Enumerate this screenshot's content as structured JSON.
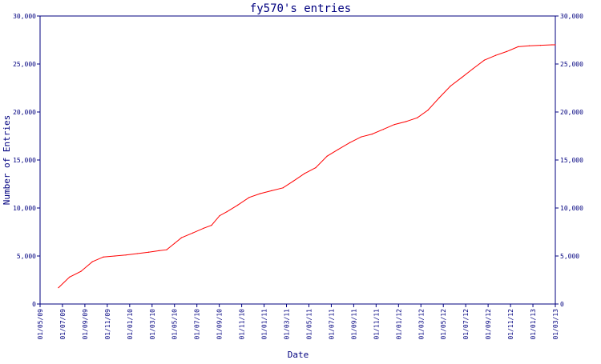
{
  "chart_data": {
    "type": "line",
    "title": "fy570's entries",
    "xlabel": "Date",
    "ylabel": "Number of Entries",
    "ylim": [
      0,
      30000
    ],
    "y_ticks": [
      {
        "value": 0,
        "label": "0"
      },
      {
        "value": 5000,
        "label": "5,000"
      },
      {
        "value": 10000,
        "label": "10,000"
      },
      {
        "value": 15000,
        "label": "15,000"
      },
      {
        "value": 20000,
        "label": "20,000"
      },
      {
        "value": 25000,
        "label": "25,000"
      },
      {
        "value": 30000,
        "label": "30,000"
      }
    ],
    "x_ticks": [
      "01/05/09",
      "01/07/09",
      "01/09/09",
      "01/11/09",
      "01/01/10",
      "01/03/10",
      "01/05/10",
      "01/07/10",
      "01/09/10",
      "01/11/10",
      "01/01/11",
      "01/03/11",
      "01/05/11",
      "01/07/11",
      "01/09/11",
      "01/11/11",
      "01/01/12",
      "01/03/12",
      "01/05/12",
      "01/07/12",
      "01/09/12",
      "01/11/12",
      "01/01/13",
      "01/03/13"
    ],
    "xlim": [
      "2009-05-01",
      "2013-03-01"
    ],
    "grid": false,
    "line_color": "#ff0000",
    "axis_color": "#00007f",
    "series": [
      {
        "points": [
          [
            "2009-06-20",
            1700
          ],
          [
            "2009-07-20",
            2800
          ],
          [
            "2009-08-20",
            3400
          ],
          [
            "2009-09-20",
            4400
          ],
          [
            "2009-10-20",
            4900
          ],
          [
            "2009-11-20",
            5000
          ],
          [
            "2009-12-20",
            5100
          ],
          [
            "2010-01-20",
            5250
          ],
          [
            "2010-02-20",
            5400
          ],
          [
            "2010-03-20",
            5550
          ],
          [
            "2010-04-10",
            5650
          ],
          [
            "2010-05-01",
            6300
          ],
          [
            "2010-05-20",
            6900
          ],
          [
            "2010-06-20",
            7400
          ],
          [
            "2010-07-20",
            7900
          ],
          [
            "2010-08-10",
            8200
          ],
          [
            "2010-09-01",
            9200
          ],
          [
            "2010-09-20",
            9600
          ],
          [
            "2010-10-20",
            10300
          ],
          [
            "2010-11-20",
            11100
          ],
          [
            "2010-12-20",
            11500
          ],
          [
            "2011-01-20",
            11800
          ],
          [
            "2011-02-20",
            12100
          ],
          [
            "2011-03-20",
            12800
          ],
          [
            "2011-04-20",
            13600
          ],
          [
            "2011-05-20",
            14200
          ],
          [
            "2011-06-20",
            15400
          ],
          [
            "2011-07-20",
            16100
          ],
          [
            "2011-08-20",
            16800
          ],
          [
            "2011-09-20",
            17400
          ],
          [
            "2011-10-20",
            17700
          ],
          [
            "2011-11-20",
            18200
          ],
          [
            "2011-12-20",
            18700
          ],
          [
            "2012-01-20",
            19000
          ],
          [
            "2012-02-20",
            19400
          ],
          [
            "2012-03-20",
            20200
          ],
          [
            "2012-04-20",
            21500
          ],
          [
            "2012-05-20",
            22700
          ],
          [
            "2012-06-20",
            23600
          ],
          [
            "2012-07-20",
            24500
          ],
          [
            "2012-08-20",
            25400
          ],
          [
            "2012-09-20",
            25900
          ],
          [
            "2012-10-20",
            26300
          ],
          [
            "2012-11-20",
            26800
          ],
          [
            "2012-12-20",
            26900
          ],
          [
            "2013-01-20",
            26950
          ],
          [
            "2013-02-20",
            27000
          ],
          [
            "2013-03-01",
            27000
          ]
        ]
      }
    ]
  }
}
